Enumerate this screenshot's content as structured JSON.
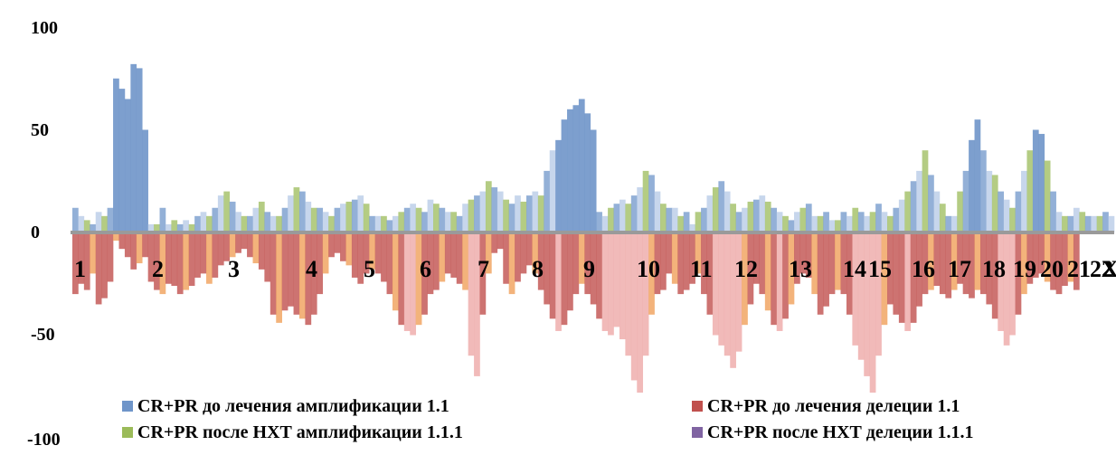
{
  "chart_data": {
    "type": "bar",
    "ylim": [
      -100,
      100
    ],
    "yticks": [
      "100",
      "50",
      "0",
      "-50",
      "-100"
    ],
    "chromosome_labels": [
      "1",
      "2",
      "3",
      "4",
      "5",
      "6",
      "7",
      "8",
      "9",
      "10",
      "11",
      "12",
      "13",
      "14",
      "15",
      "16",
      "17",
      "18",
      "19",
      "20",
      "21",
      "22",
      "Xp"
    ],
    "colors": {
      "amp_before": "#6f95c9",
      "del_before": "#c0504d",
      "amp_after": "#9bbb59",
      "del_after": "#8064a2",
      "amp_light": "#b4c8e6",
      "del_light": "#eda9a8",
      "del_orange": "#f0a05a",
      "baseline": "#9a9a9a"
    },
    "series": [
      {
        "name": "CR+PR до лечения амплификации 1.1",
        "color": "#6f95c9"
      },
      {
        "name": "CR+PR до лечения делеции 1.1",
        "color": "#c0504d"
      },
      {
        "name": "CR+PR после НХТ амплификации 1.1.1",
        "color": "#9bbb59"
      },
      {
        "name": "CR+PR после НХТ делеции 1.1.1",
        "color": "#8064a2"
      }
    ],
    "amplification_profile": [
      12,
      8,
      6,
      4,
      10,
      8,
      12,
      75,
      70,
      65,
      82,
      80,
      50,
      4,
      4,
      12,
      4,
      6,
      4,
      6,
      4,
      8,
      10,
      8,
      12,
      18,
      20,
      15,
      10,
      8,
      8,
      12,
      15,
      10,
      8,
      8,
      12,
      18,
      22,
      20,
      15,
      12,
      12,
      10,
      8,
      12,
      14,
      15,
      16,
      18,
      14,
      8,
      8,
      8,
      6,
      8,
      10,
      12,
      14,
      12,
      10,
      16,
      14,
      12,
      10,
      10,
      8,
      14,
      16,
      18,
      20,
      25,
      22,
      20,
      16,
      14,
      18,
      15,
      18,
      20,
      18,
      30,
      40,
      45,
      55,
      60,
      62,
      65,
      58,
      50,
      10,
      8,
      12,
      14,
      16,
      14,
      18,
      22,
      30,
      28,
      20,
      14,
      12,
      12,
      8,
      10,
      4,
      10,
      12,
      18,
      22,
      25,
      20,
      14,
      10,
      12,
      15,
      16,
      18,
      15,
      12,
      10,
      8,
      6,
      10,
      12,
      14,
      8,
      8,
      10,
      6,
      6,
      10,
      8,
      12,
      10,
      8,
      10,
      14,
      10,
      8,
      12,
      16,
      20,
      25,
      30,
      40,
      28,
      20,
      14,
      8,
      8,
      20,
      30,
      45,
      55,
      40,
      30,
      28,
      20,
      16,
      12,
      20,
      30,
      40,
      50,
      48,
      35,
      20,
      10,
      8,
      8,
      12,
      10,
      8,
      8,
      8,
      10,
      8
    ],
    "deletion_profile": [
      -30,
      -25,
      -28,
      -20,
      -35,
      -32,
      -24,
      -4,
      -8,
      -12,
      -18,
      -15,
      -12,
      -24,
      -28,
      -30,
      -25,
      -26,
      -30,
      -28,
      -26,
      -22,
      -20,
      -25,
      -22,
      -16,
      -14,
      -12,
      -10,
      -8,
      -12,
      -15,
      -18,
      -24,
      -40,
      -44,
      -38,
      -36,
      -40,
      -42,
      -45,
      -40,
      -30,
      -20,
      -12,
      -10,
      -14,
      -16,
      -22,
      -25,
      -20,
      -18,
      -20,
      -24,
      -30,
      -38,
      -45,
      -48,
      -50,
      -45,
      -40,
      -30,
      -28,
      -24,
      -20,
      -22,
      -25,
      -28,
      -60,
      -70,
      -40,
      -20,
      -10,
      -8,
      -25,
      -30,
      -24,
      -20,
      -16,
      -20,
      -28,
      -35,
      -42,
      -48,
      -45,
      -38,
      -30,
      -25,
      -30,
      -35,
      -42,
      -48,
      -50,
      -46,
      -52,
      -60,
      -72,
      -78,
      -60,
      -40,
      -30,
      -28,
      -20,
      -25,
      -30,
      -28,
      -25,
      -20,
      -30,
      -40,
      -50,
      -55,
      -60,
      -66,
      -58,
      -45,
      -35,
      -25,
      -30,
      -38,
      -45,
      -48,
      -42,
      -35,
      -25,
      -20,
      -22,
      -30,
      -40,
      -36,
      -30,
      -28,
      -30,
      -40,
      -55,
      -62,
      -70,
      -78,
      -60,
      -45,
      -35,
      -40,
      -44,
      -48,
      -44,
      -36,
      -30,
      -28,
      -26,
      -30,
      -32,
      -28,
      -25,
      -30,
      -32,
      -28,
      -30,
      -35,
      -42,
      -48,
      -55,
      -50,
      -40,
      -30,
      -25,
      -22,
      -20,
      -24,
      -28,
      -30,
      -26,
      -24,
      -28
    ]
  }
}
